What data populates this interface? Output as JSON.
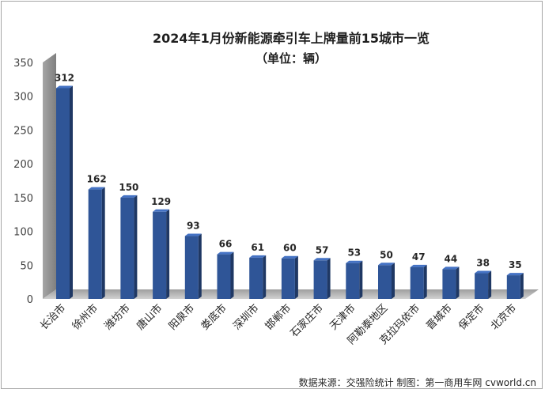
{
  "chart_data": {
    "type": "bar",
    "title": "2024年1月份新能源牵引车上牌量前15城市一览",
    "subtitle": "（单位：辆）",
    "categories": [
      "长治市",
      "徐州市",
      "潍坊市",
      "唐山市",
      "阳泉市",
      "娄底市",
      "深圳市",
      "邯郸市",
      "石家庄市",
      "天津市",
      "阿勒泰地区",
      "克拉玛依市",
      "晋城市",
      "保定市",
      "北京市"
    ],
    "values": [
      312,
      162,
      150,
      129,
      93,
      66,
      61,
      60,
      57,
      53,
      50,
      47,
      44,
      38,
      35
    ],
    "ylim": [
      0,
      350
    ],
    "yticks": [
      0,
      50,
      100,
      150,
      200,
      250,
      300,
      350
    ],
    "grid": false,
    "legend": "none",
    "source": "数据来源：交强险统计 制图：第一商用车网 cvworld.cn",
    "colors": {
      "bar_front": "#2f5597",
      "bar_side": "#1f3864",
      "bar_top": "#4472c4",
      "wall": "#8c8c8c",
      "floor": "#bfbfbf"
    }
  }
}
